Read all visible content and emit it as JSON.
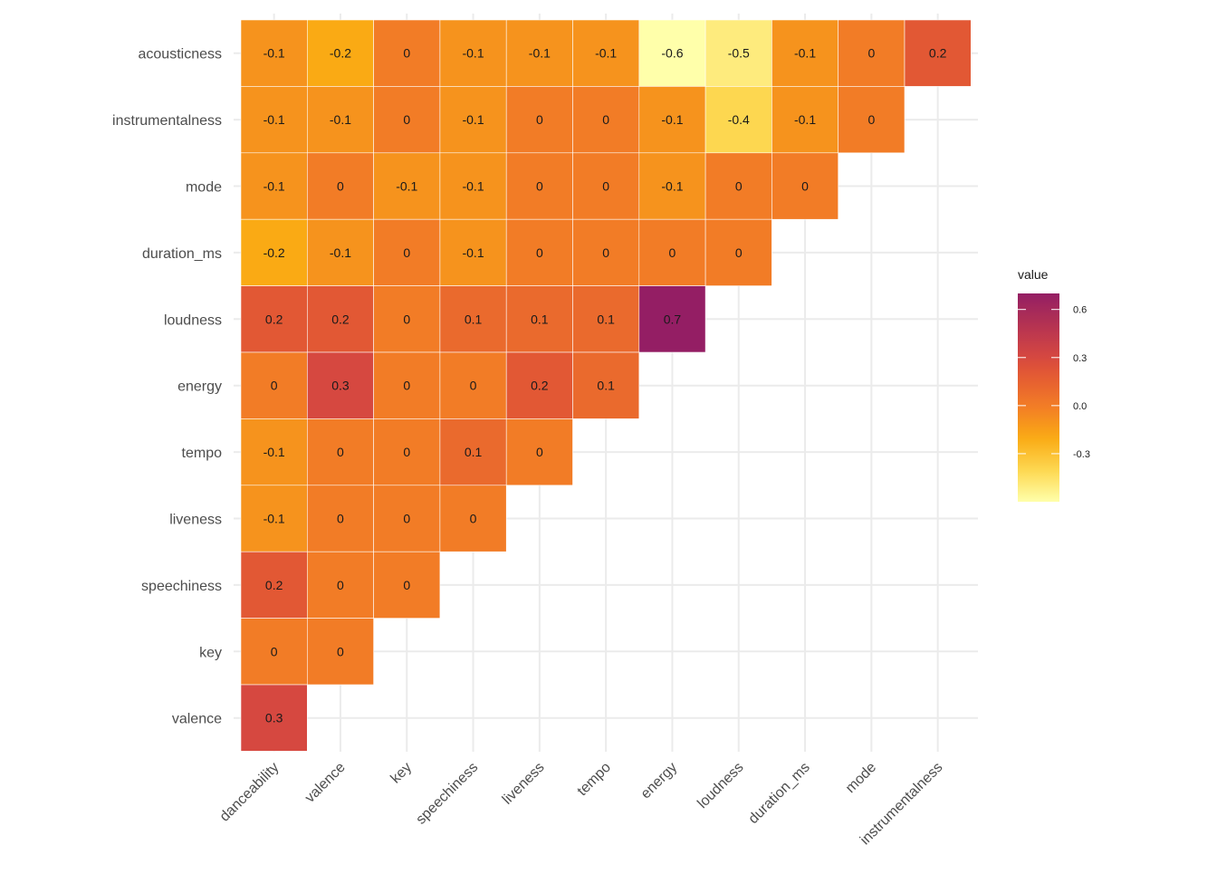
{
  "chart_data": {
    "type": "heatmap",
    "x_categories": [
      "danceability",
      "valence",
      "key",
      "speechiness",
      "liveness",
      "tempo",
      "energy",
      "loudness",
      "duration_ms",
      "mode",
      "instrumentalness"
    ],
    "y_categories": [
      "acousticness",
      "instrumentalness",
      "mode",
      "duration_ms",
      "loudness",
      "energy",
      "tempo",
      "liveness",
      "speechiness",
      "key",
      "valence"
    ],
    "values": [
      [
        "-0.1",
        "-0.2",
        "0",
        "-0.1",
        "-0.1",
        "-0.1",
        "-0.6",
        "-0.5",
        "-0.1",
        "0",
        "0.2"
      ],
      [
        "-0.1",
        "-0.1",
        "0",
        "-0.1",
        "0",
        "0",
        "-0.1",
        "-0.4",
        "-0.1",
        "0",
        null
      ],
      [
        "-0.1",
        "0",
        "-0.1",
        "-0.1",
        "0",
        "0",
        "-0.1",
        "0",
        "0",
        null,
        null
      ],
      [
        "-0.2",
        "-0.1",
        "0",
        "-0.1",
        "0",
        "0",
        "0",
        "0",
        null,
        null,
        null
      ],
      [
        "0.2",
        "0.2",
        "0",
        "0.1",
        "0.1",
        "0.1",
        "0.7",
        null,
        null,
        null,
        null
      ],
      [
        "0",
        "0.3",
        "0",
        "0",
        "0.2",
        "0.1",
        null,
        null,
        null,
        null,
        null
      ],
      [
        "-0.1",
        "0",
        "0",
        "0.1",
        "0",
        null,
        null,
        null,
        null,
        null,
        null
      ],
      [
        "-0.1",
        "0",
        "0",
        "0",
        null,
        null,
        null,
        null,
        null,
        null,
        null
      ],
      [
        "0.2",
        "0",
        "0",
        null,
        null,
        null,
        null,
        null,
        null,
        null,
        null
      ],
      [
        "0",
        "0",
        null,
        null,
        null,
        null,
        null,
        null,
        null,
        null,
        null
      ],
      [
        "0.3",
        null,
        null,
        null,
        null,
        null,
        null,
        null,
        null,
        null,
        null
      ]
    ],
    "legend": {
      "title": "value",
      "ticks": [
        "0.6",
        "0.3",
        "0.0",
        "-0.3"
      ],
      "range": [
        -0.6,
        0.7
      ],
      "placement": "right"
    },
    "grid": true
  }
}
